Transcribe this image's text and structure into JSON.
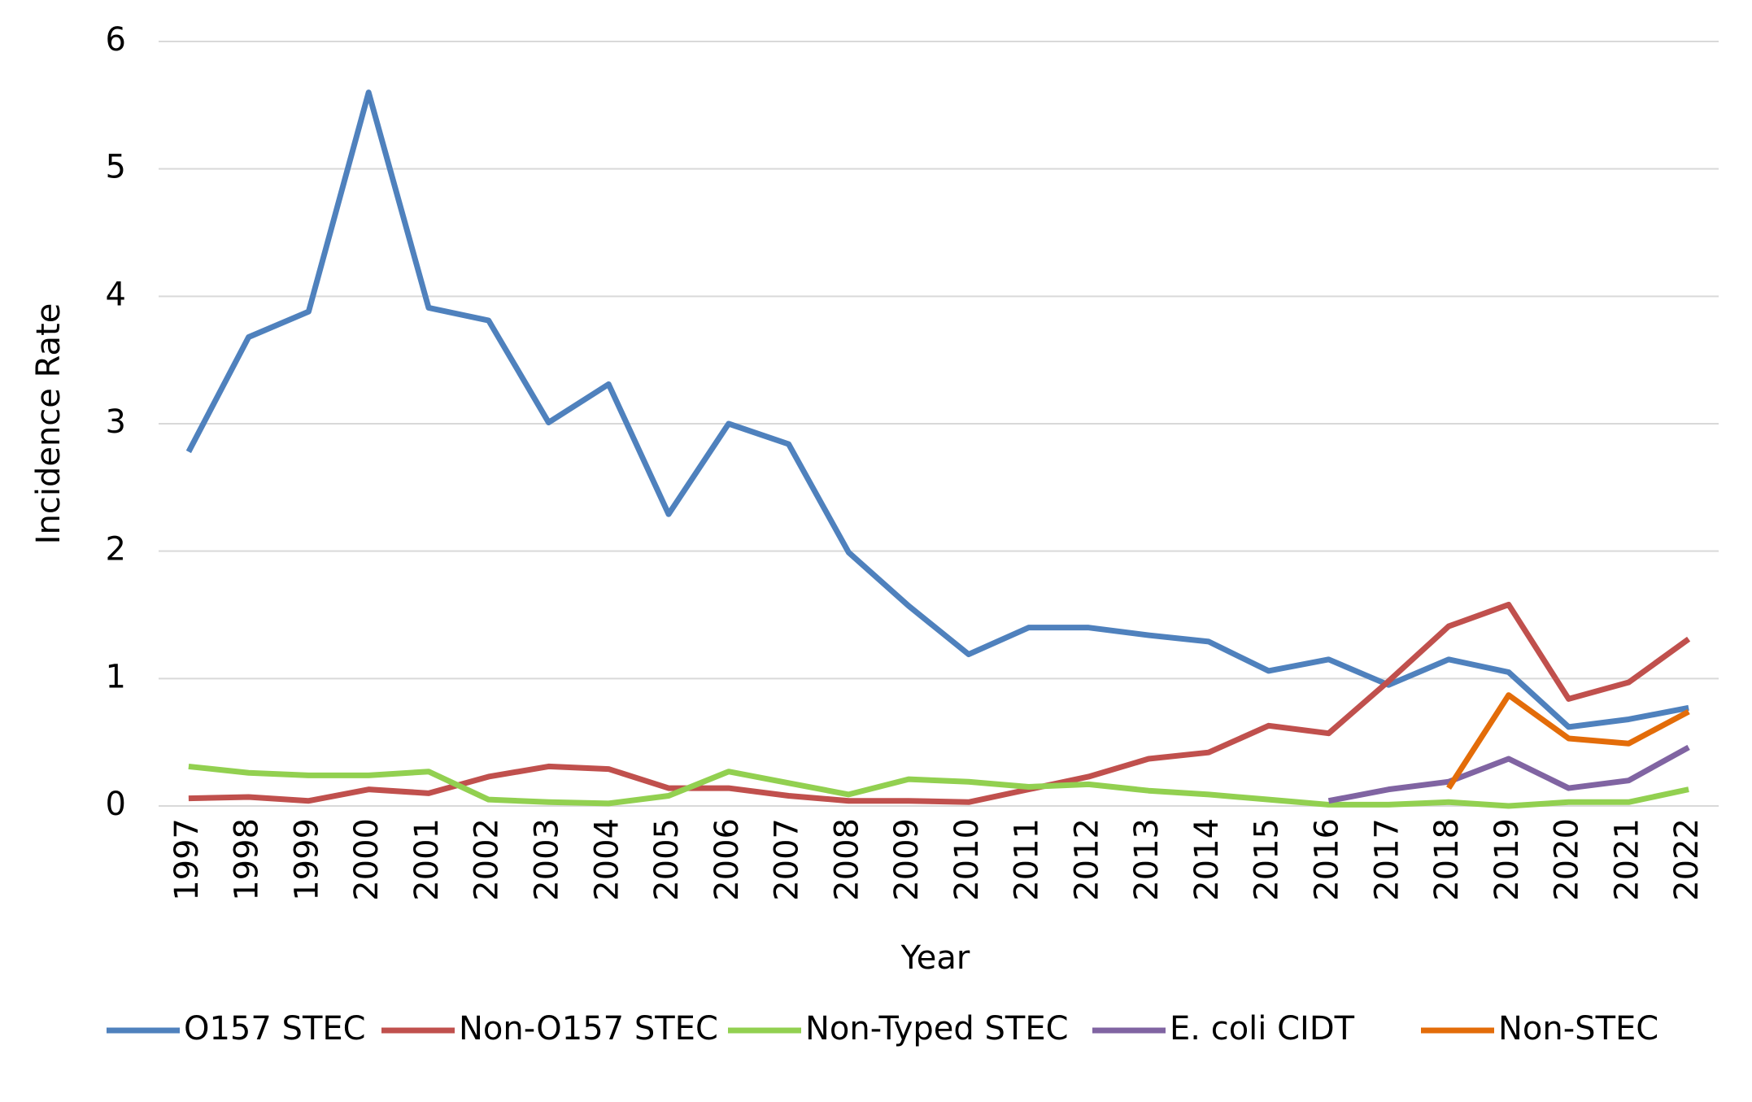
{
  "chart_data": {
    "type": "line",
    "x_label": "Year",
    "y_label": "Incidence Rate",
    "categories": [
      "1997",
      "1998",
      "1999",
      "2000",
      "2001",
      "2002",
      "2003",
      "2004",
      "2005",
      "2006",
      "2007",
      "2008",
      "2009",
      "2010",
      "2011",
      "2012",
      "2013",
      "2014",
      "2015",
      "2016",
      "2017",
      "2018",
      "2019",
      "2020",
      "2021",
      "2022"
    ],
    "series": [
      {
        "name": "O157 STEC",
        "color": "#4f81bd",
        "values": [
          2.78,
          3.68,
          3.88,
          5.6,
          3.91,
          3.81,
          3.01,
          3.31,
          2.29,
          3.0,
          2.84,
          1.99,
          1.57,
          1.19,
          1.4,
          1.4,
          1.34,
          1.29,
          1.06,
          1.15,
          0.95,
          1.15,
          1.05,
          0.62,
          0.68,
          0.77
        ]
      },
      {
        "name": "Non-O157 STEC",
        "color": "#c0504d",
        "values": [
          0.06,
          0.07,
          0.04,
          0.13,
          0.1,
          0.23,
          0.31,
          0.29,
          0.14,
          0.14,
          0.08,
          0.04,
          0.04,
          0.03,
          0.13,
          0.23,
          0.37,
          0.42,
          0.63,
          0.57,
          0.98,
          1.41,
          1.58,
          0.84,
          0.97,
          1.31
        ]
      },
      {
        "name": "Non-Typed STEC",
        "color": "#92d050",
        "values": [
          0.31,
          0.26,
          0.24,
          0.24,
          0.27,
          0.05,
          0.03,
          0.02,
          0.08,
          0.27,
          0.18,
          0.09,
          0.21,
          0.19,
          0.15,
          0.17,
          0.12,
          0.09,
          0.05,
          0.01,
          0.01,
          0.03,
          0.0,
          0.03,
          0.03,
          0.13
        ]
      },
      {
        "name": "E. coli CIDT",
        "color": "#8064a2",
        "values": [
          null,
          null,
          null,
          null,
          null,
          null,
          null,
          null,
          null,
          null,
          null,
          null,
          null,
          null,
          null,
          null,
          null,
          null,
          null,
          0.04,
          0.13,
          0.19,
          0.37,
          0.14,
          0.2,
          0.46
        ]
      },
      {
        "name": "Non-STEC",
        "color": "#e36c09",
        "values": [
          null,
          null,
          null,
          null,
          null,
          null,
          null,
          null,
          null,
          null,
          null,
          null,
          null,
          null,
          null,
          null,
          null,
          null,
          null,
          null,
          null,
          0.14,
          0.87,
          0.53,
          0.49,
          0.74
        ]
      }
    ],
    "ylim": [
      0,
      6
    ],
    "yticks": [
      0,
      1,
      2,
      3,
      4,
      5,
      6
    ],
    "grid": true,
    "legend": "bottom"
  }
}
